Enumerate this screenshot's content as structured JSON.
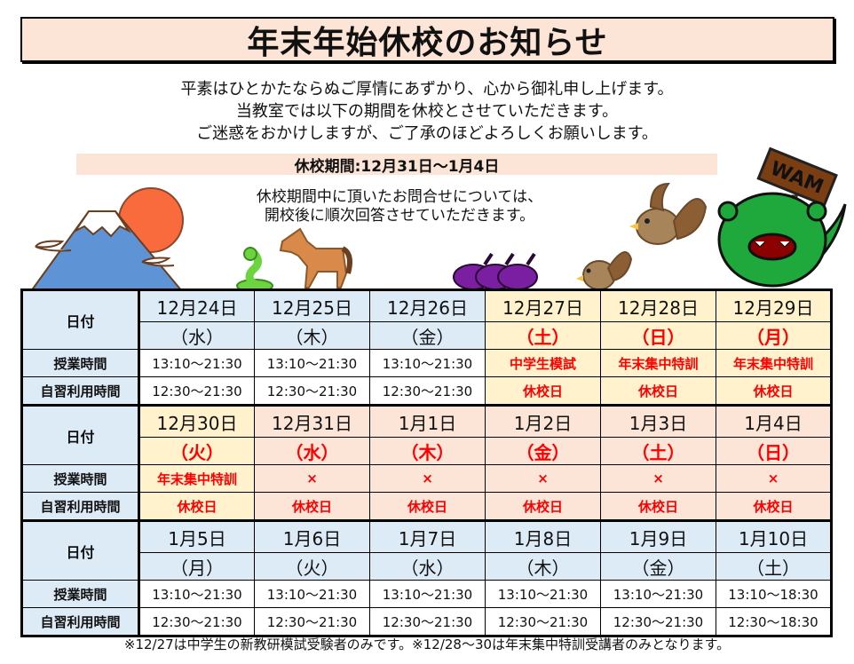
{
  "title": "年末年始休校のお知らせ",
  "greeting": [
    "平素はひとかたならぬご厚情にあずかり、心から御礼申し上げます。",
    "当教室では以下の期間を休校とさせていただきます。",
    "ご迷惑をおかけしますが、ご了承のほどよろしくお願いします。"
  ],
  "period": "休校期間:12月31日～1月4日",
  "inquiry": [
    "休校期間中に頂いたお問合せについては、",
    "開校後に順次回答させていただきます。"
  ],
  "sign_text": "WAM",
  "row_labels": {
    "date": "日付",
    "class": "授業時間",
    "self": "自習利用時間"
  },
  "colors": {
    "blue": "#DDEBF7",
    "cream": "#FFF2CC",
    "pink": "#FCE4D6",
    "red": "#FF0000",
    "banner": "#FCE4D6"
  },
  "weeks": [
    {
      "days": [
        {
          "date": "12月24日",
          "dow": "（水）",
          "class": "13:10～21:30",
          "self": "12:30～21:30",
          "bg": "blue",
          "red": false
        },
        {
          "date": "12月25日",
          "dow": "（木）",
          "class": "13:10～21:30",
          "self": "12:30～21:30",
          "bg": "blue",
          "red": false
        },
        {
          "date": "12月26日",
          "dow": "（金）",
          "class": "13:10～21:30",
          "self": "12:30～21:30",
          "bg": "blue",
          "red": false
        },
        {
          "date": "12月27日",
          "dow": "（土）",
          "class": "中学生模試",
          "self": "休校日",
          "bg": "cream",
          "red": true
        },
        {
          "date": "12月28日",
          "dow": "（日）",
          "class": "年末集中特訓",
          "self": "休校日",
          "bg": "cream",
          "red": true
        },
        {
          "date": "12月29日",
          "dow": "（月）",
          "class": "年末集中特訓",
          "self": "休校日",
          "bg": "cream",
          "red": true
        }
      ]
    },
    {
      "days": [
        {
          "date": "12月30日",
          "dow": "（火）",
          "class": "年末集中特訓",
          "self": "休校日",
          "bg": "cream",
          "red": true
        },
        {
          "date": "12月31日",
          "dow": "（水）",
          "class": "×",
          "self": "休校日",
          "bg": "pink",
          "red": true
        },
        {
          "date": "1月1日",
          "dow": "（木）",
          "class": "×",
          "self": "休校日",
          "bg": "pink",
          "red": true
        },
        {
          "date": "1月2日",
          "dow": "（金）",
          "class": "×",
          "self": "休校日",
          "bg": "pink",
          "red": true
        },
        {
          "date": "1月3日",
          "dow": "（土）",
          "class": "×",
          "self": "休校日",
          "bg": "pink",
          "red": true
        },
        {
          "date": "1月4日",
          "dow": "（日）",
          "class": "×",
          "self": "休校日",
          "bg": "pink",
          "red": true
        }
      ]
    },
    {
      "days": [
        {
          "date": "1月5日",
          "dow": "（月）",
          "class": "13:10～21:30",
          "self": "12:30～21:30",
          "bg": "blue",
          "red": false
        },
        {
          "date": "1月6日",
          "dow": "（火）",
          "class": "13:10～21:30",
          "self": "12:30～21:30",
          "bg": "blue",
          "red": false
        },
        {
          "date": "1月7日",
          "dow": "（水）",
          "class": "13:10～21:30",
          "self": "12:30～21:30",
          "bg": "blue",
          "red": false
        },
        {
          "date": "1月8日",
          "dow": "（木）",
          "class": "13:10～21:30",
          "self": "12:30～21:30",
          "bg": "blue",
          "red": false
        },
        {
          "date": "1月9日",
          "dow": "（金）",
          "class": "13:10～21:30",
          "self": "12:30～21:30",
          "bg": "blue",
          "red": false
        },
        {
          "date": "1月10日",
          "dow": "（土）",
          "class": "13:10～18:30",
          "self": "12:30～18:30",
          "bg": "blue",
          "red": false
        }
      ]
    }
  ],
  "note": "※12/27は中学生の新教研模試受験者のみです。※12/28～30は年末集中特訓受講者のみとなります。"
}
